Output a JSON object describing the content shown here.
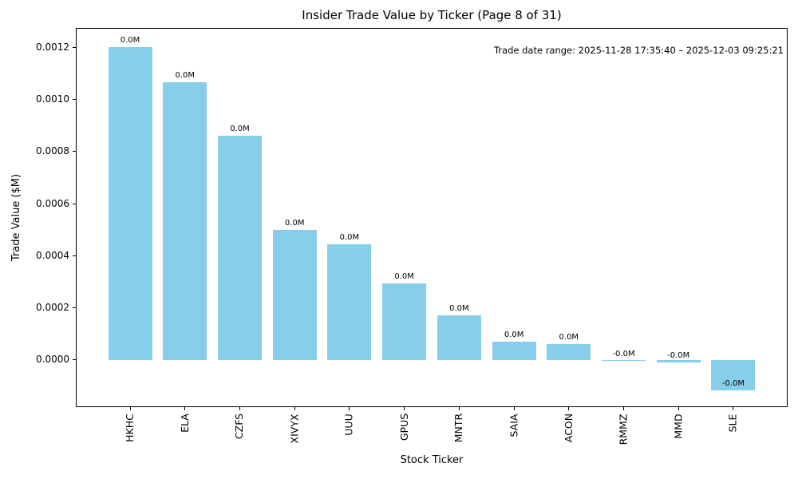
{
  "figure": {
    "background": "#ffffff",
    "text_color": "#000000",
    "spine_color": "#000000"
  },
  "chart_data": {
    "type": "bar",
    "title": "Insider Trade Value by Ticker (Page 8 of 31)",
    "xlabel": "Stock Ticker",
    "ylabel": "Trade Value ($M)",
    "annotation": "Trade date range: 2025-11-28 17:35:40 – 2025-12-03 09:25:21",
    "bar_color": "#87CEEB",
    "categories": [
      "HKHC",
      "ELA",
      "CZFS",
      "XIVYX",
      "UUU",
      "GPUS",
      "MNTR",
      "SAIA",
      "ACON",
      "RMMZ",
      "MMD",
      "SLE"
    ],
    "values": [
      0.0012,
      0.001065,
      0.00086,
      0.0005,
      0.000445,
      0.000295,
      0.00017,
      7e-05,
      6e-05,
      -2e-06,
      -9e-06,
      -0.000116
    ],
    "bar_labels": [
      "0.0M",
      "0.0M",
      "0.0M",
      "0.0M",
      "0.0M",
      "0.0M",
      "0.0M",
      "0.0M",
      "0.0M",
      "-0.0M",
      "-0.0M",
      "-0.0M"
    ],
    "y_ticks": [
      0.0,
      0.0002,
      0.0004,
      0.0006,
      0.0008,
      0.001,
      0.0012
    ],
    "y_tick_labels": [
      "0.0000",
      "0.0002",
      "0.0004",
      "0.0006",
      "0.0008",
      "0.0010",
      "0.0012"
    ],
    "ylim": [
      -0.000181,
      0.001274
    ],
    "grid": false,
    "legend": null
  }
}
